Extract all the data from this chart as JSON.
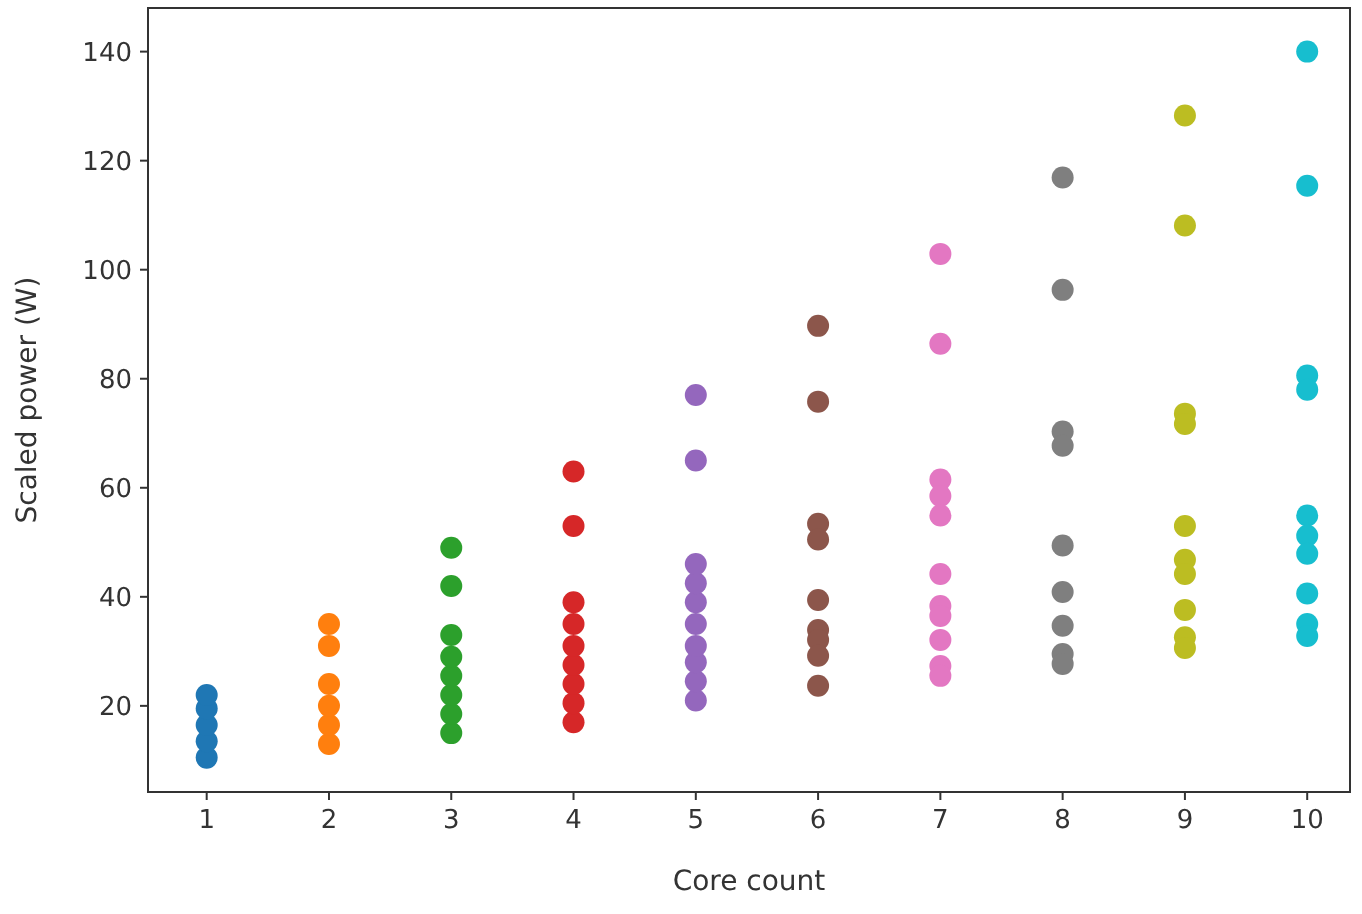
{
  "chart_data": {
    "type": "scatter",
    "xlabel": "Core count",
    "ylabel": "Scaled power (W)",
    "xlim": [
      0.52,
      10.35
    ],
    "ylim": [
      4.2,
      148
    ],
    "xticks": [
      1,
      2,
      3,
      4,
      5,
      6,
      7,
      8,
      9,
      10
    ],
    "yticks": [
      20,
      40,
      60,
      80,
      100,
      120,
      140
    ],
    "grid": false,
    "marker": "circle",
    "series": [
      {
        "color": "#1f77b4",
        "x": [
          1,
          1,
          1,
          1,
          1
        ],
        "values": [
          10.5,
          13.5,
          16.5,
          19.5,
          22
        ]
      },
      {
        "color": "#ff7f0e",
        "x": [
          2,
          2,
          2,
          2,
          2,
          2
        ],
        "values": [
          13,
          16.5,
          20,
          24,
          31,
          35
        ]
      },
      {
        "color": "#2ca02c",
        "x": [
          3,
          3,
          3,
          3,
          3,
          3,
          3,
          3
        ],
        "values": [
          15,
          18.5,
          22,
          25.5,
          29,
          33,
          42,
          49
        ]
      },
      {
        "color": "#d62728",
        "x": [
          4,
          4,
          4,
          4,
          4,
          4,
          4,
          4,
          4
        ],
        "values": [
          17,
          20.5,
          24,
          27.5,
          31,
          35,
          39,
          53,
          63
        ]
      },
      {
        "color": "#9467bd",
        "x": [
          5,
          5,
          5,
          5,
          5,
          5,
          5,
          5,
          5,
          5
        ],
        "values": [
          21,
          24.5,
          28,
          31,
          35,
          39,
          42.5,
          46,
          65,
          77
        ]
      },
      {
        "color": "#8c564b",
        "x": [
          6,
          6,
          6,
          6,
          6,
          6,
          6,
          6,
          6
        ],
        "values": [
          89.7,
          75.8,
          53.4,
          50.5,
          39.4,
          33.9,
          32.1,
          29.2,
          23.7
        ]
      },
      {
        "color": "#e377c2",
        "x": [
          7,
          7,
          7,
          7,
          7,
          7,
          7,
          7,
          7,
          7,
          7
        ],
        "values": [
          102.9,
          86.4,
          61.5,
          58.5,
          54.9,
          44.2,
          38.3,
          36.5,
          32.1,
          27.3,
          25.5
        ]
      },
      {
        "color": "#7f7f7f",
        "x": [
          8,
          8,
          8,
          8,
          8,
          8,
          8,
          8,
          8
        ],
        "values": [
          116.9,
          96.3,
          70.3,
          67.7,
          49.4,
          40.9,
          34.7,
          29.5,
          27.7
        ]
      },
      {
        "color": "#bcbd22",
        "x": [
          9,
          9,
          9,
          9,
          9,
          9,
          9,
          9,
          9,
          9
        ],
        "values": [
          128.3,
          108.1,
          73.6,
          71.7,
          53.0,
          46.8,
          44.2,
          37.6,
          32.6,
          30.6
        ]
      },
      {
        "color": "#17becf",
        "x": [
          10,
          10,
          10,
          10,
          10,
          10,
          10,
          10,
          10,
          10
        ],
        "values": [
          140,
          115.4,
          80.6,
          78.0,
          54.9,
          51.2,
          47.9,
          40.6,
          35.0,
          32.8
        ]
      }
    ]
  }
}
